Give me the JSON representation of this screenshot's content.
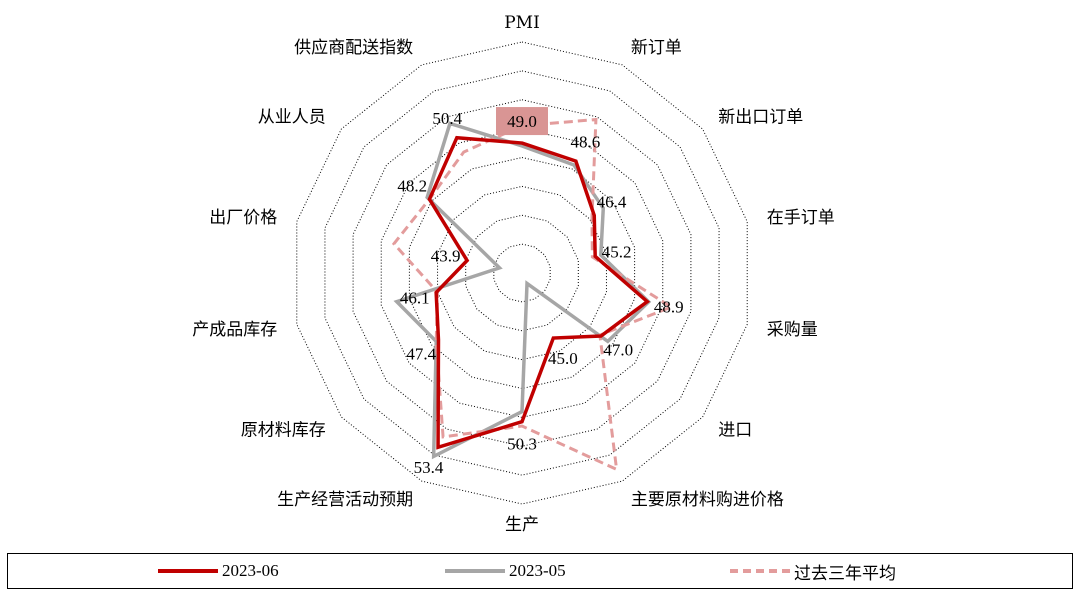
{
  "chart_data": {
    "type": "radar",
    "axes": [
      "PMI",
      "新订单",
      "新出口订单",
      "在手订单",
      "采购量",
      "进口",
      "主要原材料购进价格",
      "生产",
      "生产经营活动预期",
      "原材料库存",
      "产成品库存",
      "出厂价格",
      "从业人员",
      "供应商配送指数"
    ],
    "r_range": [
      40,
      56
    ],
    "grid_levels": 8,
    "data_labels": [
      "49.0",
      "48.6",
      "46.4",
      "45.2",
      "48.9",
      "47.0",
      "45.0",
      "50.3",
      "53.4",
      "47.4",
      "46.1",
      "43.9",
      "48.2",
      "50.4"
    ],
    "highlight_label_index": 0,
    "highlight_color": "#d99594",
    "series": [
      {
        "name": "2023-06",
        "color": "#c00000",
        "dash": "solid",
        "values": [
          49.0,
          48.6,
          46.4,
          45.2,
          48.9,
          47.0,
          45.0,
          50.3,
          53.4,
          47.4,
          46.1,
          43.9,
          48.2,
          50.4
        ]
      },
      {
        "name": "2023-05",
        "color": "#a6a6a6",
        "dash": "solid",
        "values": [
          48.8,
          48.3,
          47.2,
          45.6,
          49.0,
          47.6,
          40.8,
          49.6,
          54.1,
          47.6,
          48.9,
          41.6,
          48.4,
          51.5
        ]
      },
      {
        "name": "过去三年平均",
        "color": "#e39c9c",
        "dash": "dashed",
        "values": [
          50.2,
          51.8,
          46.2,
          45.0,
          50.6,
          46.9,
          55.1,
          50.6,
          52.6,
          47.6,
          46.0,
          49.1,
          48.2,
          49.3
        ]
      }
    ]
  }
}
